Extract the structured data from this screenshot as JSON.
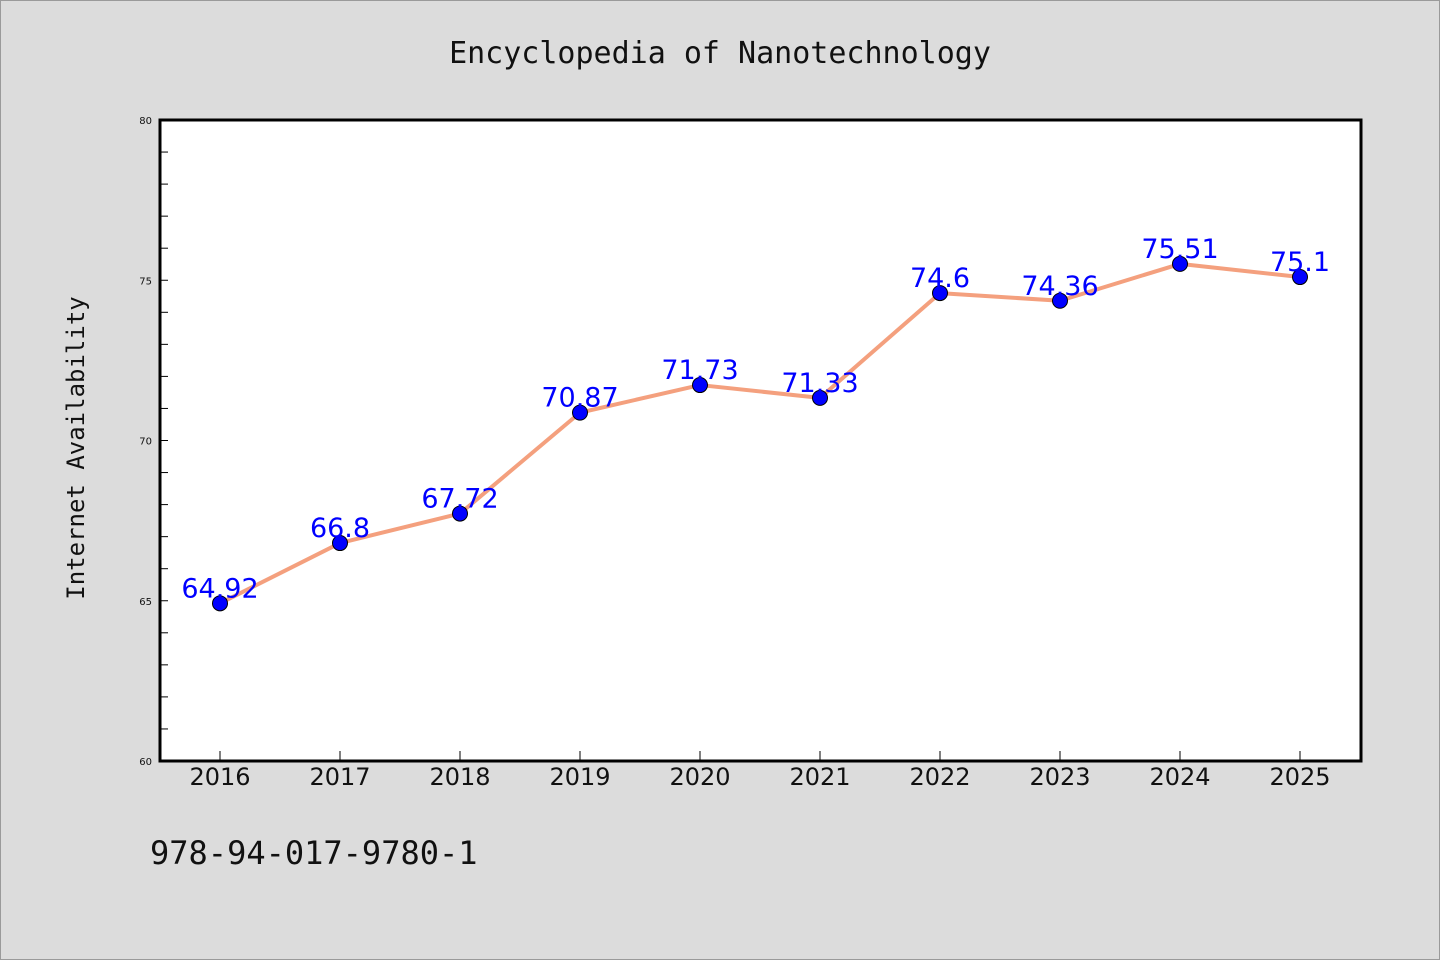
{
  "chart_data": {
    "type": "line",
    "title": "Encyclopedia of Nanotechnology",
    "xlabel": "",
    "ylabel": "Internet Availability",
    "categories": [
      "2016",
      "2017",
      "2018",
      "2019",
      "2020",
      "2021",
      "2022",
      "2023",
      "2024",
      "2025"
    ],
    "series": [
      {
        "values": [
          64.92,
          66.8,
          67.72,
          70.87,
          71.73,
          71.33,
          74.6,
          74.36,
          75.51,
          75.1
        ],
        "line_color": "#f4a07e",
        "marker_color": "#0000ff"
      }
    ],
    "data_labels": [
      "64.92",
      "66.8",
      "67.72",
      "70.87",
      "71.73",
      "71.33",
      "74.6",
      "74.36",
      "75.51",
      "75.1"
    ],
    "data_label_color": "#0000ff",
    "ylim": [
      60,
      80
    ],
    "yticks": [
      "60",
      "65",
      "70",
      "75",
      "80"
    ],
    "grid": false,
    "legend": "none"
  },
  "footer": {
    "isbn": "978-94-017-9780-1"
  }
}
